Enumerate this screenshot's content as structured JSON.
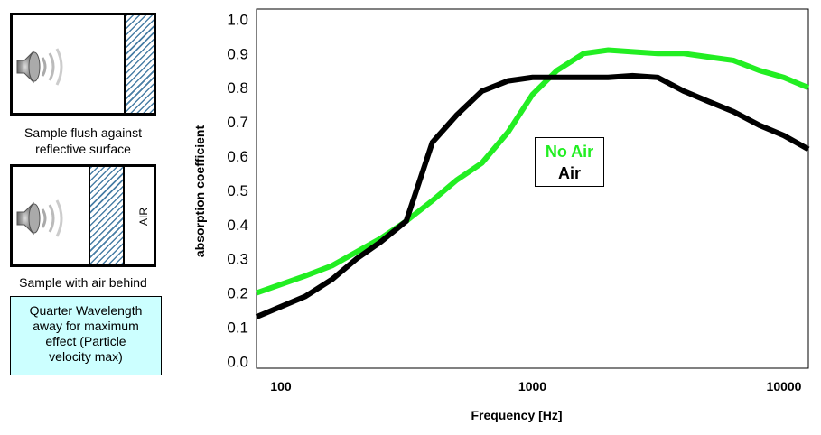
{
  "left_panel": {
    "caption_flush": [
      "Sample flush against",
      "reflective surface"
    ],
    "caption_air": "Sample with air behind",
    "air_label": "AIR",
    "note": [
      "Quarter Wavelength",
      "away for maximum",
      "effect (Particle",
      "velocity max)"
    ],
    "note_bg": "#ccffff",
    "hatch_color": "#4a7fa6",
    "icons": [
      "speaker-icon",
      "speaker-icon"
    ]
  },
  "chart_data": {
    "type": "line",
    "xscale": "log",
    "xlabel": "Frequency [Hz]",
    "ylabel": "absorption coefficient",
    "xlim": [
      80,
      12500
    ],
    "ylim": [
      -0.02,
      1.03
    ],
    "x_ticks": [
      100,
      1000,
      10000
    ],
    "x_tick_labels": [
      "100",
      "1000",
      "10000"
    ],
    "y_ticks": [
      0.0,
      0.1,
      0.2,
      0.3,
      0.4,
      0.5,
      0.6,
      0.7,
      0.8,
      0.9,
      1.0
    ],
    "y_tick_labels": [
      "0.0",
      "0.1",
      "0.2",
      "0.3",
      "0.4",
      "0.5",
      "0.6",
      "0.7",
      "0.8",
      "0.9",
      "1.0"
    ],
    "legend_position": "center-right",
    "grid": false,
    "series": [
      {
        "name": "No Air",
        "color": "#22ee22",
        "x": [
          80,
          125,
          160,
          200,
          250,
          315,
          400,
          500,
          630,
          800,
          1000,
          1250,
          1600,
          2000,
          2500,
          3150,
          4000,
          5000,
          6300,
          8000,
          10000,
          12500
        ],
        "y": [
          0.2,
          0.25,
          0.28,
          0.32,
          0.36,
          0.41,
          0.47,
          0.53,
          0.58,
          0.67,
          0.78,
          0.85,
          0.9,
          0.91,
          0.905,
          0.9,
          0.9,
          0.89,
          0.88,
          0.85,
          0.83,
          0.8
        ]
      },
      {
        "name": "Air",
        "color": "#000000",
        "x": [
          80,
          125,
          160,
          200,
          250,
          315,
          400,
          500,
          630,
          800,
          1000,
          1250,
          1600,
          2000,
          2500,
          3150,
          4000,
          5000,
          6300,
          8000,
          10000,
          12500
        ],
        "y": [
          0.13,
          0.19,
          0.24,
          0.3,
          0.35,
          0.41,
          0.64,
          0.72,
          0.79,
          0.82,
          0.83,
          0.83,
          0.83,
          0.83,
          0.835,
          0.83,
          0.79,
          0.76,
          0.73,
          0.69,
          0.66,
          0.62
        ]
      }
    ]
  }
}
